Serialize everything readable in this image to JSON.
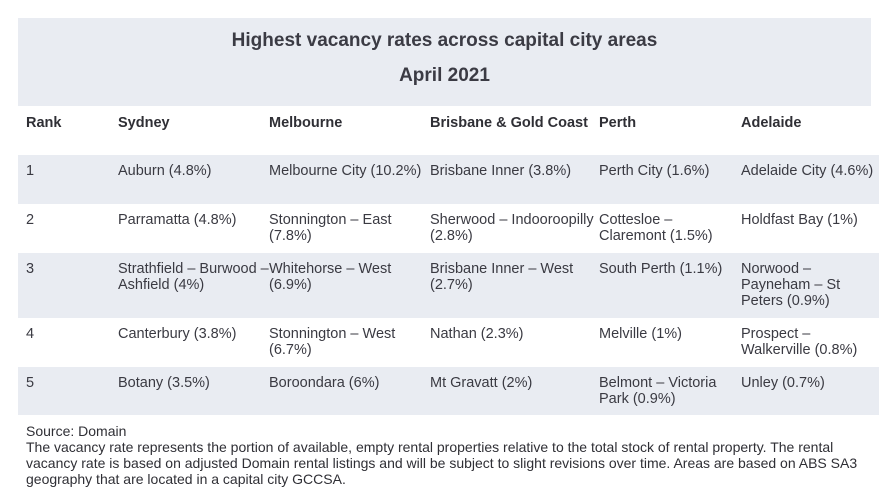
{
  "table": {
    "title": "Highest vacancy rates across capital city areas",
    "subtitle": "April 2021",
    "headers": [
      "Rank",
      "Sydney",
      "Melbourne",
      "Brisbane & Gold Coast",
      "Perth",
      "Adelaide"
    ],
    "rows": [
      [
        "1",
        "Auburn (4.8%)",
        "Melbourne City (10.2%)",
        "Brisbane Inner (3.8%)",
        "Perth City (1.6%)",
        "Adelaide City (4.6%)"
      ],
      [
        "2",
        "Parramatta (4.8%)",
        "Stonnington – East (7.8%)",
        "Sherwood – Indooroopilly (2.8%)",
        "Cottesloe – Claremont (1.5%)",
        "Holdfast Bay (1%)"
      ],
      [
        "3",
        "Strathfield – Burwood – Ashfield (4%)",
        "Whitehorse – West (6.9%)",
        "Brisbane Inner – West (2.7%)",
        "South Perth (1.1%)",
        "Norwood – Payneham – St Peters (0.9%)"
      ],
      [
        "4",
        "Canterbury (3.8%)",
        "Stonnington – West (6.7%)",
        "Nathan (2.3%)",
        "Melville (1%)",
        "Prospect – Walkerville (0.8%)"
      ],
      [
        "5",
        "Botany (3.5%)",
        "Boroondara (6%)",
        "Mt Gravatt (2%)",
        "Belmont – Victoria Park (0.9%)",
        "Unley (0.7%)"
      ]
    ]
  },
  "footer": {
    "source": "Source: Domain",
    "note": "The vacancy rate represents the portion of available, empty rental properties relative to the total stock of rental property. The rental vacancy rate is based on adjusted Domain rental listings and will be subject to slight revisions over time. Areas are based on ABS SA3 geography that are located in a capital city GCCSA."
  },
  "colors": {
    "panel_bg": "#e9ecf2",
    "alt_row_bg": "#ffffff",
    "text": "#2f2f35"
  }
}
